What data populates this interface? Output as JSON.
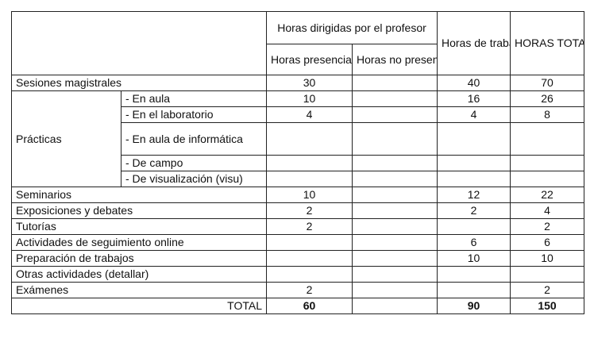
{
  "header": {
    "dirigidas": "Horas dirigidas por el profesor",
    "presenciales": "Horas presenciales.",
    "no_presenciales": "Horas no presenciales.",
    "autonomo": "Horas de trabajo autónomo",
    "totales": "HORAS TOTALES"
  },
  "rows": {
    "magistrales": {
      "label": "Sesiones magistrales",
      "pres": "30",
      "nopres": "",
      "auto": "40",
      "total": "70"
    },
    "practicas": {
      "label": "Prácticas",
      "subs": [
        {
          "label": "- En aula",
          "pres": "10",
          "nopres": "",
          "auto": "16",
          "total": "26"
        },
        {
          "label": "- En el laboratorio",
          "pres": "4",
          "nopres": "",
          "auto": "4",
          "total": "8"
        },
        {
          "label": "- En aula de informática",
          "pres": "",
          "nopres": "",
          "auto": "",
          "total": ""
        },
        {
          "label": "- De campo",
          "pres": "",
          "nopres": "",
          "auto": "",
          "total": ""
        },
        {
          "label": "- De visualización (visu)",
          "pres": "",
          "nopres": "",
          "auto": "",
          "total": ""
        }
      ]
    },
    "seminarios": {
      "label": "Seminarios",
      "pres": "10",
      "nopres": "",
      "auto": "12",
      "total": "22"
    },
    "exposiciones": {
      "label": "Exposiciones y debates",
      "pres": "2",
      "nopres": "",
      "auto": "2",
      "total": "4"
    },
    "tutorias": {
      "label": "Tutorías",
      "pres": "2",
      "nopres": "",
      "auto": "",
      "total": "2"
    },
    "online": {
      "label": "Actividades de seguimiento online",
      "pres": "",
      "nopres": "",
      "auto": "6",
      "total": "6"
    },
    "trabajos": {
      "label": "Preparación de trabajos",
      "pres": "",
      "nopres": "",
      "auto": "10",
      "total": "10"
    },
    "otras": {
      "label": "Otras actividades (detallar)",
      "pres": "",
      "nopres": "",
      "auto": "",
      "total": ""
    },
    "examenes": {
      "label": "Exámenes",
      "pres": "2",
      "nopres": "",
      "auto": "",
      "total": "2"
    }
  },
  "total": {
    "label": "TOTAL",
    "pres": "60",
    "nopres": "",
    "auto": "90",
    "total": "150"
  }
}
